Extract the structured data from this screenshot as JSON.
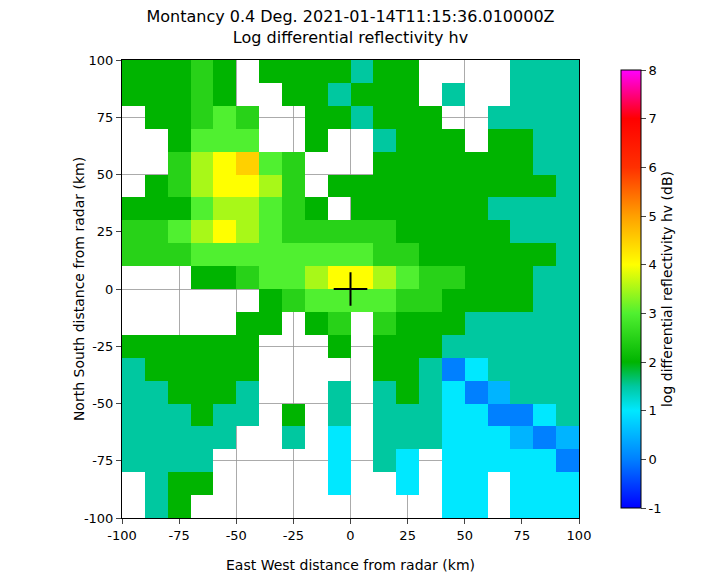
{
  "chart_data": {
    "type": "heatmap",
    "title": "Montancy 0.4 Deg. 2021-01-14T11:15:36.010000Z",
    "subtitle": "Log differential reflectivity hv",
    "x_label": "East West distance from radar (km)",
    "y_label": "North South distance from radar (km)",
    "xlim": [
      -100,
      100
    ],
    "ylim": [
      -100,
      100
    ],
    "xticks": [
      -100,
      -75,
      -50,
      -25,
      0,
      25,
      50,
      75,
      100
    ],
    "yticks": [
      -100,
      -75,
      -50,
      -25,
      0,
      25,
      50,
      75,
      100
    ],
    "grid": true,
    "x": [
      -95,
      -85,
      -75,
      -65,
      -55,
      -45,
      -35,
      -25,
      -15,
      -5,
      5,
      15,
      25,
      35,
      45,
      55,
      65,
      75,
      85,
      95
    ],
    "y": [
      -95,
      -85,
      -75,
      -65,
      -55,
      -45,
      -35,
      -25,
      -15,
      -5,
      5,
      15,
      25,
      35,
      45,
      55,
      65,
      75,
      85,
      95
    ],
    "cells": [
      [
        null,
        1.5,
        2,
        null,
        null,
        null,
        null,
        null,
        null,
        null,
        null,
        null,
        null,
        null,
        1,
        1,
        null,
        1,
        1,
        1
      ],
      [
        null,
        1.5,
        2,
        2,
        null,
        null,
        null,
        null,
        null,
        1,
        null,
        null,
        1,
        null,
        1,
        1,
        null,
        1,
        1,
        1
      ],
      [
        1.5,
        1.5,
        1.5,
        1.5,
        null,
        null,
        null,
        null,
        null,
        1,
        null,
        1.5,
        1,
        null,
        1,
        1,
        1,
        1,
        1,
        0
      ],
      [
        1.5,
        1.5,
        1.5,
        1.5,
        1.5,
        null,
        null,
        1.5,
        null,
        1,
        null,
        1.5,
        1.5,
        1.5,
        1,
        1,
        1,
        0.5,
        0,
        0.5
      ],
      [
        1.5,
        1.5,
        1.5,
        2,
        1.5,
        1.5,
        null,
        2,
        null,
        1.5,
        null,
        1.5,
        1.5,
        1.5,
        1,
        1,
        0,
        0,
        1,
        1.5
      ],
      [
        1.5,
        1.5,
        2,
        2,
        2,
        1.5,
        null,
        null,
        null,
        1.5,
        null,
        1.5,
        2,
        1.5,
        1,
        0,
        0.5,
        1.5,
        1.5,
        1.5
      ],
      [
        1.5,
        2,
        2,
        2,
        2,
        2,
        null,
        null,
        null,
        null,
        null,
        2,
        2,
        1.5,
        0,
        1,
        1.5,
        1.5,
        1.5,
        1.5
      ],
      [
        2,
        2,
        2,
        2,
        2,
        2,
        null,
        null,
        null,
        2,
        null,
        2,
        2,
        2,
        1.5,
        1.5,
        1.5,
        1.5,
        1.5,
        1.5
      ],
      [
        null,
        null,
        null,
        null,
        null,
        2,
        2,
        null,
        2,
        2.5,
        null,
        2.5,
        2,
        2,
        2,
        1.5,
        1.5,
        1.5,
        1.5,
        1.5
      ],
      [
        null,
        null,
        null,
        null,
        null,
        null,
        2,
        2.5,
        3,
        3,
        3,
        3,
        2.5,
        2.5,
        2,
        2,
        2,
        2,
        1.5,
        1.5
      ],
      [
        null,
        null,
        null,
        2,
        2,
        2.5,
        3,
        3,
        3.5,
        4,
        4,
        3.5,
        3,
        2.5,
        2.5,
        2,
        2,
        2,
        1.5,
        1.5
      ],
      [
        2.5,
        2.5,
        2.5,
        3,
        3,
        3,
        3,
        3,
        3,
        3,
        3,
        2.5,
        2.5,
        2,
        2,
        2,
        2,
        2,
        2,
        1.5
      ],
      [
        2.5,
        2.5,
        3,
        3.5,
        4,
        3.5,
        3,
        2.5,
        2.5,
        2.5,
        2.5,
        2.5,
        2,
        2,
        2,
        2,
        2,
        1.5,
        1.5,
        1.5
      ],
      [
        2,
        2,
        2,
        3,
        3.5,
        3.5,
        3,
        2.5,
        2,
        null,
        2,
        2,
        2,
        2,
        2,
        2,
        1.5,
        1.5,
        1.5,
        1.5
      ],
      [
        null,
        2,
        2.5,
        3.5,
        4,
        4,
        3.5,
        2.5,
        null,
        2,
        2,
        2,
        2,
        2,
        2,
        2,
        2,
        2,
        2,
        1.5
      ],
      [
        null,
        null,
        2.5,
        3.5,
        4,
        4.5,
        3,
        2.5,
        null,
        null,
        null,
        2,
        2,
        2,
        2,
        2,
        2,
        2,
        1.5,
        1.5
      ],
      [
        null,
        null,
        2,
        3,
        3,
        3,
        null,
        null,
        2,
        null,
        null,
        1.5,
        2,
        2,
        2,
        null,
        2,
        2,
        1.5,
        1.5
      ],
      [
        null,
        2,
        2,
        2.5,
        3,
        2.5,
        null,
        null,
        2,
        2,
        1.5,
        2,
        2,
        2,
        null,
        null,
        1.5,
        1.5,
        1.5,
        1.5
      ],
      [
        2,
        2,
        2,
        2.5,
        2,
        null,
        null,
        2,
        2,
        1.5,
        2,
        2,
        2,
        null,
        1.5,
        null,
        null,
        1.5,
        1.5,
        1.5
      ],
      [
        2,
        2,
        2,
        2.5,
        2,
        null,
        2,
        2,
        2,
        2,
        1.5,
        2,
        2,
        null,
        null,
        null,
        null,
        1.5,
        1.5,
        1.5
      ]
    ],
    "colorbar_label": "log differential reflectivity hv (dB)",
    "colorbar_range": [
      -1,
      8
    ],
    "colorbar_ticks": [
      -1,
      0,
      1,
      2,
      3,
      4,
      5,
      6,
      7,
      8
    ],
    "radar": {
      "x": 0,
      "y": 0,
      "marker": "cross"
    }
  }
}
